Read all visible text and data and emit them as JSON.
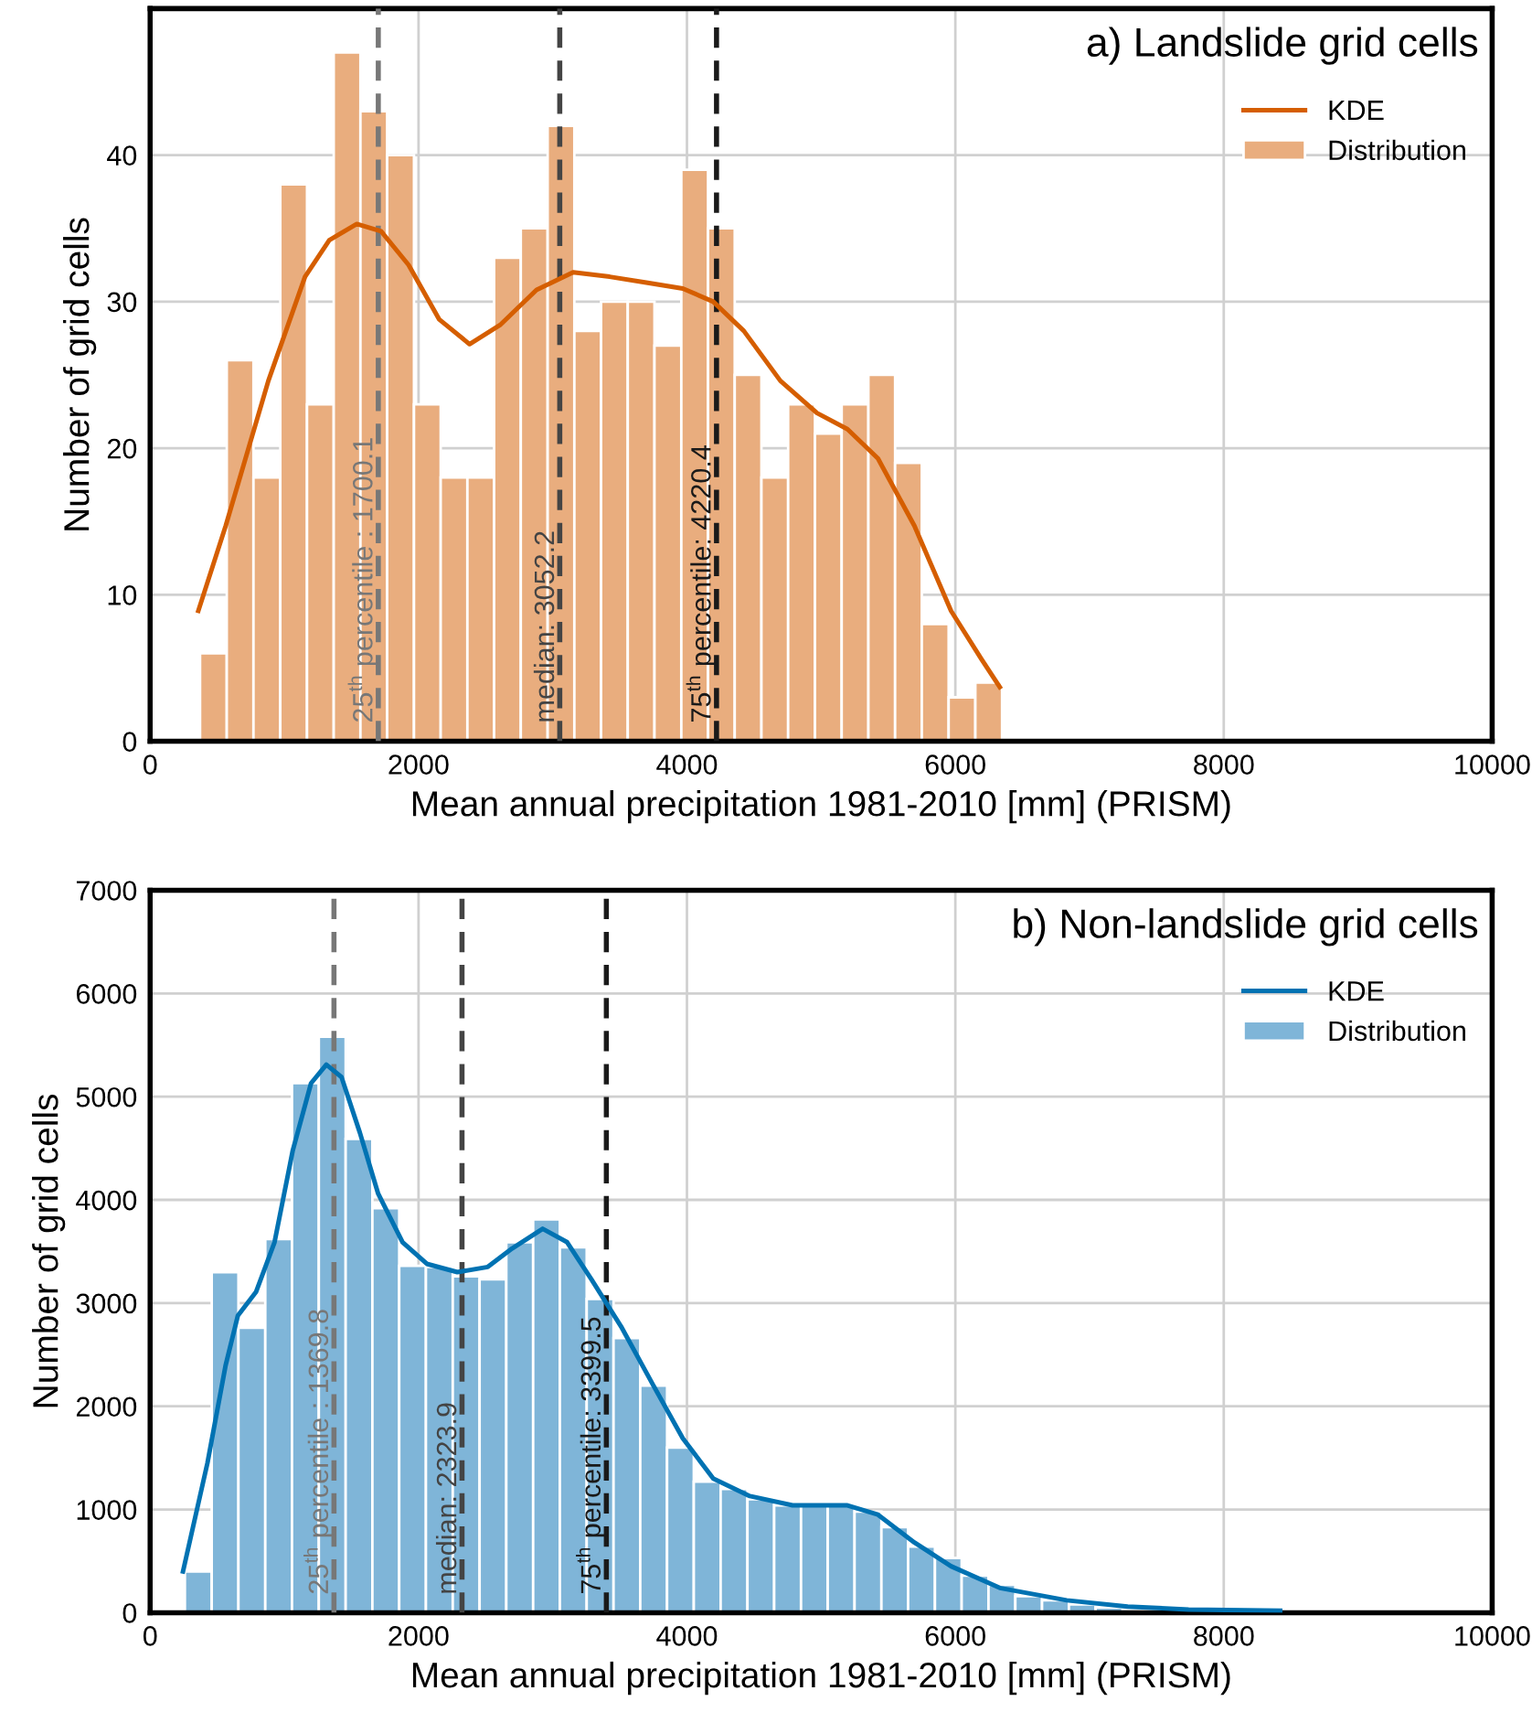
{
  "chart_data": [
    {
      "type": "histogram",
      "title": "a) Landslide grid cells",
      "xlabel": "Mean annual precipitation 1981-2010 [mm] (PRISM)",
      "ylabel": "Number of grid cells",
      "xlim": [
        0,
        10000
      ],
      "xticks": [
        0,
        2000,
        4000,
        6000,
        8000,
        10000
      ],
      "ylim": [
        0,
        50
      ],
      "yticks": [
        0,
        10,
        20,
        30,
        40
      ],
      "grid": true,
      "legend": "top right",
      "series": [
        {
          "name": "KDE",
          "type": "line",
          "color": "#d55e00",
          "x": [
            359,
            563,
            881,
            1154,
            1335,
            1540,
            1721,
            1926,
            2153,
            2380,
            2607,
            2879,
            3152,
            3424,
            3697,
            3969,
            4196,
            4424,
            4696,
            4969,
            5196,
            5423,
            5695,
            5968,
            6195,
            6331
          ],
          "values": [
            8.9,
            14.7,
            24.6,
            31.7,
            34.2,
            35.3,
            34.8,
            32.5,
            28.8,
            27.1,
            28.4,
            30.8,
            32.0,
            31.7,
            31.3,
            30.9,
            30.0,
            28.0,
            24.6,
            22.4,
            21.3,
            19.3,
            14.7,
            8.9,
            5.6,
            3.7
          ]
        },
        {
          "name": "Distribution",
          "type": "histogram",
          "color": "#e9ad7e",
          "bins": [
            372,
            571,
            770,
            970,
            1169,
            1368,
            1567,
            1766,
            1966,
            2165,
            2364,
            2563,
            2762,
            2962,
            3161,
            3360,
            3559,
            3758,
            3958,
            4157,
            4356,
            4555,
            4754,
            4954,
            5153,
            5352,
            5551,
            5750,
            5950,
            6149,
            6348
          ],
          "values": [
            6,
            26,
            18,
            38,
            23,
            47,
            43,
            40,
            23,
            18,
            18,
            33,
            35,
            42,
            28,
            30,
            30,
            27,
            39,
            35,
            25,
            18,
            23,
            21,
            23,
            25,
            19,
            8,
            3,
            4
          ]
        }
      ],
      "ref_lines": [
        {
          "axis": "x",
          "value": 1700.1,
          "label": "25$^{th}$ percentile : 1700.1",
          "color": "#777777",
          "line_style": "dashed"
        },
        {
          "axis": "x",
          "value": 3052.2,
          "label": "median: 3052.2",
          "color": "#444444",
          "line_style": "dashed"
        },
        {
          "axis": "x",
          "value": 4220.4,
          "label": "75$^{th}$ percentile: 4220.4",
          "color": "#1a1a1a",
          "line_style": "dashed"
        }
      ]
    },
    {
      "type": "histogram",
      "title": "b) Non-landslide grid cells",
      "xlabel": "Mean annual precipitation 1981-2010 [mm] (PRISM)",
      "ylabel": "Number of grid cells",
      "xlim": [
        0,
        10000
      ],
      "xticks": [
        0,
        2000,
        4000,
        6000,
        8000,
        10000
      ],
      "ylim": [
        0,
        7000
      ],
      "yticks": [
        0,
        1000,
        2000,
        3000,
        4000,
        5000,
        6000,
        7000
      ],
      "grid": true,
      "legend": "top right",
      "series": [
        {
          "name": "KDE",
          "type": "line",
          "color": "#0072b2",
          "x": [
            245,
            427,
            563,
            654,
            790,
            927,
            1063,
            1199,
            1313,
            1426,
            1563,
            1699,
            1881,
            2062,
            2289,
            2516,
            2698,
            2925,
            3107,
            3288,
            3515,
            3742,
            3969,
            4196,
            4469,
            4787,
            5196,
            5423,
            5695,
            5968,
            6331,
            6830,
            7284,
            7738,
            8420
          ],
          "values": [
            400,
            1450,
            2400,
            2880,
            3110,
            3590,
            4480,
            5130,
            5310,
            5190,
            4650,
            4060,
            3590,
            3380,
            3300,
            3350,
            3530,
            3720,
            3590,
            3230,
            2760,
            2220,
            1690,
            1300,
            1130,
            1040,
            1040,
            950,
            680,
            450,
            240,
            120,
            60,
            30,
            20
          ]
        },
        {
          "name": "Distribution",
          "type": "histogram",
          "color": "#7fb5d8",
          "bins": [
            259,
            459,
            658,
            858,
            1057,
            1257,
            1457,
            1656,
            1856,
            2055,
            2255,
            2455,
            2654,
            2854,
            3053,
            3253,
            3453,
            3652,
            3852,
            4051,
            4251,
            4451,
            4650,
            4850,
            5049,
            5249,
            5449,
            5648,
            5848,
            6047,
            6247,
            6447,
            6646,
            6846,
            7045,
            7245,
            7445,
            7644,
            7844
          ],
          "values": [
            400,
            3300,
            2760,
            3620,
            5130,
            5580,
            4590,
            3920,
            3360,
            3350,
            3260,
            3230,
            3590,
            3810,
            3540,
            3040,
            2660,
            2200,
            1600,
            1270,
            1200,
            1100,
            1040,
            1040,
            1040,
            980,
            830,
            640,
            530,
            360,
            270,
            160,
            120,
            80,
            50,
            null,
            20,
            20
          ]
        }
      ],
      "ref_lines": [
        {
          "axis": "x",
          "value": 1369.8,
          "label": "25$^{th}$ percentile : 1369.8",
          "color": "#777777",
          "line_style": "dashed"
        },
        {
          "axis": "x",
          "value": 2323.9,
          "label": "median: 2323.9",
          "color": "#444444",
          "line_style": "dashed"
        },
        {
          "axis": "x",
          "value": 3399.5,
          "label": "75$^{th}$ percentile: 3399.5",
          "color": "#1a1a1a",
          "line_style": "dashed"
        }
      ]
    }
  ]
}
